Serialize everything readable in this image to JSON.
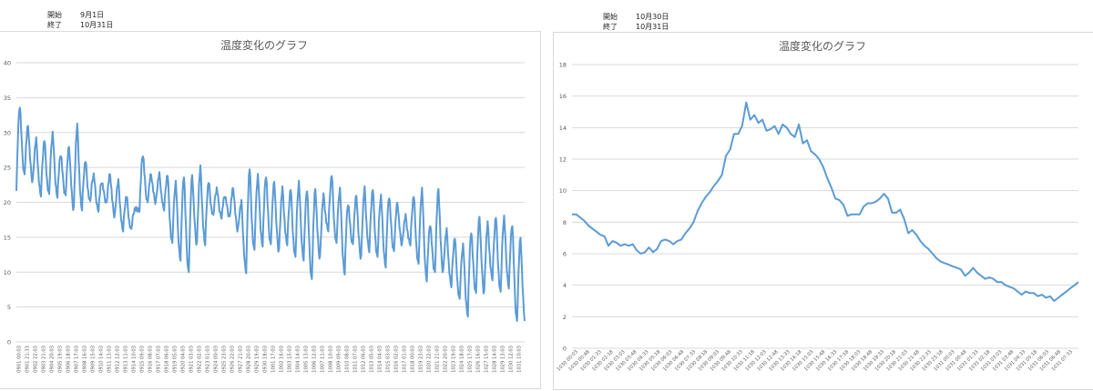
{
  "left_header": {
    "start_label": "開始",
    "start_value": "9月1日",
    "end_label": "終了",
    "end_value": "10月31日"
  },
  "right_header": {
    "start_label": "開始",
    "start_value": "10月30日",
    "end_label": "終了",
    "end_value": "10月31日"
  },
  "chart_data": [
    {
      "type": "line",
      "title": "温度変化のグラフ",
      "color": "#5b9bd5",
      "ylim": [
        0,
        40
      ],
      "yticks": [
        0,
        5,
        10,
        15,
        20,
        25,
        30,
        35,
        40
      ],
      "x_tick_labels": [
        "0901 00:03",
        "0901 21:33",
        "0902 22:03",
        "0903 21:03",
        "0904 20:03",
        "0905 19:03",
        "0906 18:03",
        "0907 17:03",
        "0908 16:03",
        "0909 15:03",
        "0910 14:03",
        "0911 13:03",
        "0912 12:03",
        "0913 11:03",
        "0914 10:03",
        "0915 09:03",
        "0916 08:03",
        "0917 07:03",
        "0918 06:03",
        "0919 05:03",
        "0920 04:03",
        "0921 03:03",
        "0922 02:03",
        "0923 01:03",
        "0924 00:03",
        "0925 23:03",
        "0926 22:03",
        "0927 21:03",
        "0928 20:03",
        "0929 19:03",
        "0930 18:03",
        "1001 17:03",
        "1002 16:03",
        "1003 15:03",
        "1004 14:03",
        "1005 13:03",
        "1006 12:03",
        "1007 11:03",
        "1008 10:03",
        "1009 09:03",
        "1010 08:03",
        "1011 07:03",
        "1012 06:03",
        "1013 05:03",
        "1014 04:03",
        "1015 03:03",
        "1016 02:03",
        "1017 01:03",
        "1018 00:03",
        "1019 23:03",
        "1020 22:03",
        "1021 21:03",
        "1022 20:03",
        "1023 19:03",
        "1024 18:03",
        "1025 17:03",
        "1026 16:03",
        "1027 15:03",
        "1028 14:03",
        "1029 13:03",
        "1030 12:03",
        "1031 10:03"
      ],
      "daily_max": [
        34,
        31,
        29,
        29,
        30,
        27,
        28,
        31,
        26,
        24,
        23,
        24,
        23,
        21,
        19,
        27,
        24,
        24,
        24,
        23,
        24,
        24,
        25,
        23,
        22,
        21,
        22,
        20,
        25,
        24,
        24,
        23,
        22,
        22,
        23,
        22,
        22,
        21,
        24,
        22,
        20,
        21,
        22,
        22,
        21,
        21,
        20,
        18,
        21,
        22,
        17,
        22,
        16,
        15,
        14,
        16,
        18,
        17,
        18,
        18,
        17,
        15
      ],
      "daily_min": [
        22,
        24,
        23,
        21,
        21,
        21,
        21,
        19,
        19,
        20,
        19,
        20,
        18,
        16,
        16,
        19,
        20,
        20,
        19,
        14,
        12,
        10,
        14,
        14,
        18,
        18,
        18,
        16,
        10,
        13,
        14,
        14,
        13,
        14,
        12,
        12,
        9,
        12,
        16,
        14,
        10,
        14,
        12,
        13,
        12,
        11,
        13,
        14,
        14,
        11,
        9,
        10,
        10,
        8,
        6,
        4,
        7,
        7,
        9,
        7,
        8,
        3
      ]
    },
    {
      "type": "line",
      "title": "温度変化のグラフ",
      "color": "#5b9bd5",
      "ylim": [
        0,
        18
      ],
      "yticks": [
        0,
        2,
        4,
        6,
        8,
        10,
        12,
        14,
        16,
        18
      ],
      "x_tick_labels": [
        "1030 00:03",
        "1030 00:48",
        "1030 01:33",
        "1030 02:18",
        "1030 03:03",
        "1030 03:48",
        "1030 04:33",
        "1030 05:18",
        "1030 06:03",
        "1030 06:48",
        "1030 07:33",
        "1030 08:18",
        "1030 09:03",
        "1030 09:48",
        "1030 10:33",
        "1030 11:18",
        "1030 12:03",
        "1030 12:48",
        "1030 13:33",
        "1030 14:18",
        "1030 15:03",
        "1030 15:48",
        "1030 16:33",
        "1030 17:18",
        "1030 18:03",
        "1030 18:48",
        "1030 19:33",
        "1030 20:18",
        "1030 21:03",
        "1030 21:48",
        "1030 22:33",
        "1030 23:18",
        "1031 00:03",
        "1031 00:48",
        "1031 01:33",
        "1031 02:18",
        "1031 03:03",
        "1031 03:48",
        "1031 04:33",
        "1031 05:18",
        "1031 06:03",
        "1031 06:48",
        "1031 07:33"
      ],
      "values": [
        8.5,
        8.5,
        8.3,
        8.1,
        7.8,
        7.6,
        7.4,
        7.2,
        7.1,
        6.5,
        6.8,
        6.7,
        6.5,
        6.6,
        6.5,
        6.6,
        6.2,
        6.0,
        6.1,
        6.4,
        6.1,
        6.3,
        6.8,
        6.9,
        6.8,
        6.6,
        6.8,
        6.9,
        7.3,
        7.6,
        8.0,
        8.7,
        9.2,
        9.6,
        9.9,
        10.3,
        10.6,
        11.0,
        12.2,
        12.6,
        13.6,
        13.6,
        14.1,
        15.6,
        14.5,
        14.8,
        14.3,
        14.5,
        13.8,
        13.9,
        14.1,
        13.6,
        14.2,
        14.0,
        13.6,
        13.4,
        14.2,
        13.0,
        13.2,
        12.5,
        12.3,
        12.0,
        11.5,
        10.8,
        10.2,
        9.5,
        9.4,
        9.1,
        8.4,
        8.5,
        8.5,
        8.5,
        9.0,
        9.2,
        9.2,
        9.3,
        9.5,
        9.8,
        9.5,
        8.6,
        8.6,
        8.8,
        8.2,
        7.3,
        7.5,
        7.2,
        6.8,
        6.5,
        6.3,
        6.0,
        5.7,
        5.5,
        5.4,
        5.3,
        5.2,
        5.1,
        5.0,
        4.6,
        4.8,
        5.1,
        4.8,
        4.6,
        4.4,
        4.5,
        4.4,
        4.2,
        4.2,
        4.0,
        3.9,
        3.8,
        3.6,
        3.4,
        3.6,
        3.5,
        3.5,
        3.3,
        3.4,
        3.2,
        3.3,
        3.0,
        3.2,
        3.4,
        3.6,
        3.8,
        4.0,
        4.2
      ]
    }
  ]
}
